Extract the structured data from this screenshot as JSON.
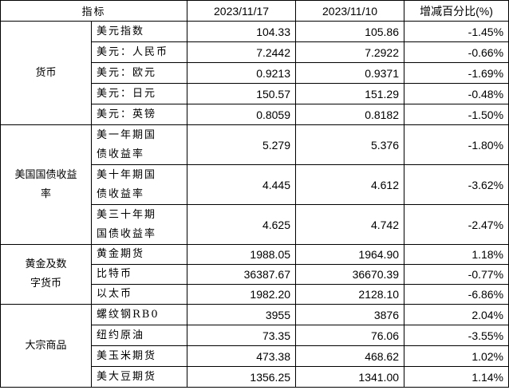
{
  "header": {
    "indicator": "指标",
    "date1": "2023/11/17",
    "date2": "2023/11/10",
    "change": "增减百分比(%)"
  },
  "groups": [
    {
      "category": "货币",
      "rows": [
        {
          "name": "美元指数",
          "v1": "104.33",
          "v2": "105.86",
          "chg": "-1.45%"
        },
        {
          "name": "美元：人民币",
          "v1": "7.2442",
          "v2": "7.2922",
          "chg": "-0.66%"
        },
        {
          "name": "美元：欧元",
          "v1": "0.9213",
          "v2": "0.9371",
          "chg": "-1.69%"
        },
        {
          "name": "美元：日元",
          "v1": "150.57",
          "v2": "151.29",
          "chg": "-0.48%"
        },
        {
          "name": "美元：英镑",
          "v1": "0.8059",
          "v2": "0.8182",
          "chg": "-1.50%"
        }
      ]
    },
    {
      "category": "美国国债收益率",
      "rows": [
        {
          "name": "美一年期国债收益率",
          "v1": "5.279",
          "v2": "5.376",
          "chg": "-1.80%"
        },
        {
          "name": "美十年期国债收益率",
          "v1": "4.445",
          "v2": "4.612",
          "chg": "-3.62%"
        },
        {
          "name": "美三十年期国债收益率",
          "v1": "4.625",
          "v2": "4.742",
          "chg": "-2.47%"
        }
      ]
    },
    {
      "category": "黄金及数字货币",
      "rows": [
        {
          "name": "黄金期货",
          "v1": "1988.05",
          "v2": "1964.90",
          "chg": "1.18%"
        },
        {
          "name": "比特币",
          "v1": "36387.67",
          "v2": "36670.39",
          "chg": "-0.77%"
        },
        {
          "name": "以太币",
          "v1": "1982.20",
          "v2": "2128.10",
          "chg": "-6.86%"
        }
      ]
    },
    {
      "category": "大宗商品",
      "rows": [
        {
          "name": "螺纹钢RB0",
          "v1": "3955",
          "v2": "3876",
          "chg": "2.04%"
        },
        {
          "name": "纽约原油",
          "v1": "73.35",
          "v2": "76.06",
          "chg": "-3.55%"
        },
        {
          "name": "美玉米期货",
          "v1": "473.38",
          "v2": "468.62",
          "chg": "1.02%"
        },
        {
          "name": "美大豆期货",
          "v1": "1356.25",
          "v2": "1341.00",
          "chg": "1.14%"
        }
      ]
    }
  ]
}
